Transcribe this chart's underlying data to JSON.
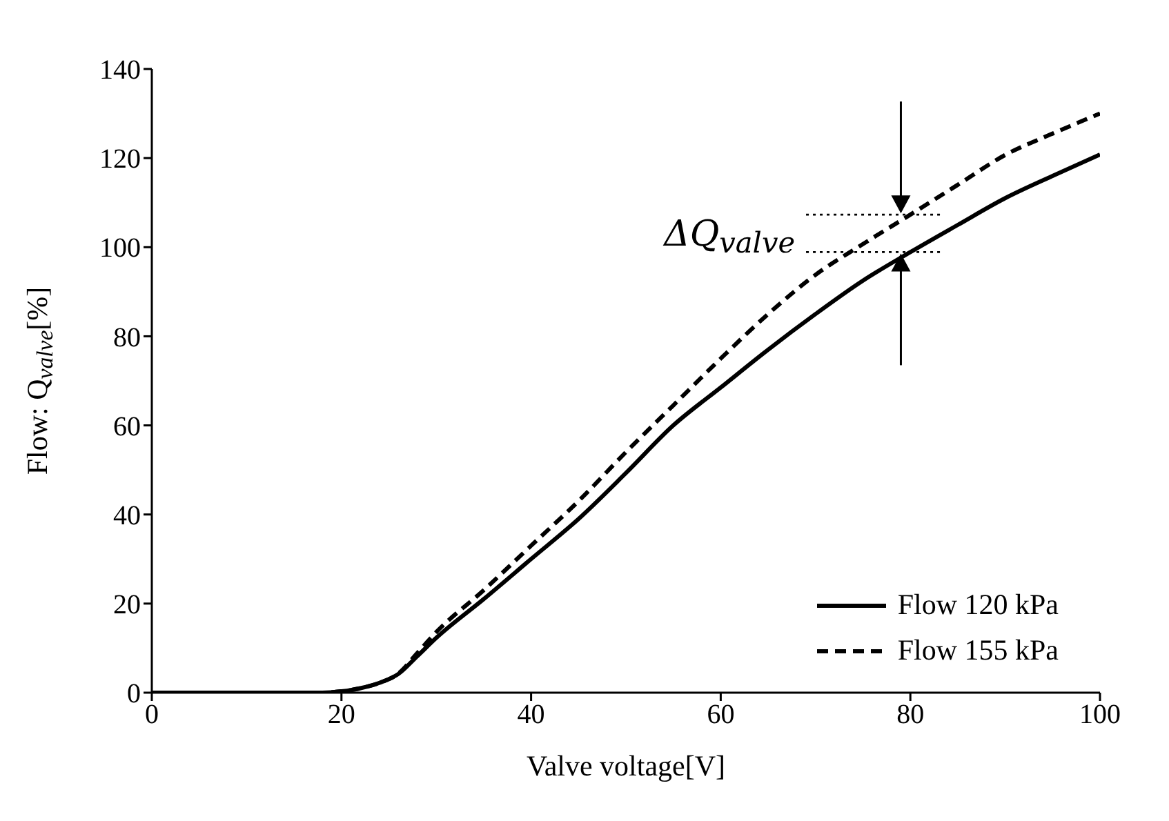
{
  "chart_data": {
    "type": "line",
    "xlabel": "Valve voltage[V]",
    "ylabel": "Flow: Q$_{valve}$[%]",
    "x": [
      0,
      10,
      18,
      20,
      22,
      24,
      26,
      28,
      30,
      35,
      40,
      45,
      50,
      55,
      60,
      65,
      70,
      75,
      80,
      85,
      90,
      95,
      100
    ],
    "series": [
      {
        "name": "Flow 120 kPa",
        "color": "#000000",
        "line_style": "solid",
        "values": [
          0,
          0,
          0,
          0.3,
          1,
          2.2,
          4.2,
          8.2,
          12.3,
          21,
          30,
          39,
          49.3,
          60,
          68.5,
          77,
          85,
          92.5,
          98.9,
          105,
          111,
          116,
          120.8
        ]
      },
      {
        "name": "Flow 155 kPa",
        "color": "#000000",
        "line_style": "dashed",
        "values": [
          0,
          0,
          0,
          0.3,
          1,
          2.2,
          4.3,
          8.9,
          13.6,
          23,
          33,
          43,
          54,
          64.5,
          75,
          85,
          93.8,
          100.7,
          107.3,
          114,
          120.7,
          125.5,
          130
        ]
      }
    ],
    "xlim": [
      0,
      100
    ],
    "xticks": [
      0,
      20,
      40,
      60,
      80,
      100
    ],
    "ylim": [
      0,
      140
    ],
    "yticks": [
      0,
      20,
      40,
      60,
      80,
      100,
      120,
      140
    ],
    "legend": "bottom right",
    "marker": "none",
    "ref_lines": [
      {
        "axis": "y",
        "value": 107.3,
        "line_style": "dotted"
      },
      {
        "axis": "y",
        "value": 98.9,
        "line_style": "dotted"
      }
    ],
    "annotations": [
      "ΔQ$_{valve}$"
    ]
  }
}
